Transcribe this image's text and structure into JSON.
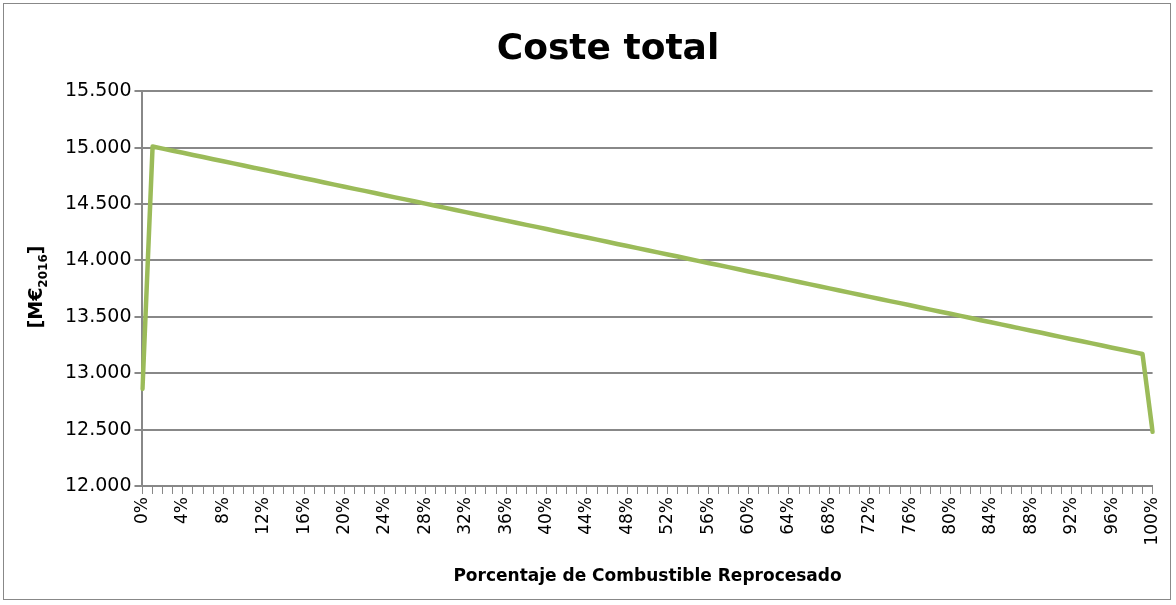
{
  "chart_data": {
    "type": "line",
    "title": "Coste total",
    "xlabel": "Porcentaje de Combustible Reprocesado",
    "ylabel": "[M€$_{2016}$]",
    "categories": [
      "0%",
      null,
      null,
      null,
      "4%",
      null,
      null,
      null,
      "8%",
      null,
      null,
      null,
      "12%",
      null,
      null,
      null,
      "16%",
      null,
      null,
      null,
      "20%",
      null,
      null,
      null,
      "24%",
      null,
      null,
      null,
      "28%",
      null,
      null,
      null,
      "32%",
      null,
      null,
      null,
      "36%",
      null,
      null,
      null,
      "40%",
      null,
      null,
      null,
      "44%",
      null,
      null,
      null,
      "48%",
      null,
      null,
      null,
      "52%",
      null,
      null,
      null,
      "56%",
      null,
      null,
      null,
      "60%",
      null,
      null,
      null,
      "64%",
      null,
      null,
      null,
      "68%",
      null,
      null,
      null,
      "72%",
      null,
      null,
      null,
      "76%",
      null,
      null,
      null,
      "80%",
      null,
      null,
      null,
      "84%",
      null,
      null,
      null,
      "88%",
      null,
      null,
      null,
      "92%",
      null,
      null,
      null,
      "96%",
      null,
      null,
      null,
      "100%"
    ],
    "series": [
      {
        "color": "#9bbb59",
        "values": [
          12860,
          15010,
          14991,
          14972,
          14954,
          14935,
          14916,
          14897,
          14879,
          14860,
          14841,
          14822,
          14803,
          14785,
          14766,
          14747,
          14728,
          14710,
          14691,
          14672,
          14653,
          14634,
          14616,
          14597,
          14578,
          14559,
          14541,
          14522,
          14503,
          14484,
          14466,
          14447,
          14428,
          14409,
          14390,
          14372,
          14353,
          14334,
          14315,
          14297,
          14278,
          14259,
          14240,
          14221,
          14203,
          14184,
          14165,
          14146,
          14128,
          14109,
          14090,
          14071,
          14053,
          14034,
          14015,
          13996,
          13977,
          13959,
          13940,
          13921,
          13902,
          13883,
          13865,
          13846,
          13827,
          13808,
          13790,
          13771,
          13752,
          13733,
          13714,
          13696,
          13677,
          13658,
          13639,
          13621,
          13602,
          13583,
          13564,
          13545,
          13527,
          13508,
          13489,
          13470,
          13452,
          13433,
          13414,
          13395,
          13377,
          13358,
          13339,
          13320,
          13301,
          13283,
          13264,
          13245,
          13226,
          13208,
          13189,
          13170,
          12480
        ]
      }
    ],
    "ylim": [
      12000,
      15500
    ],
    "yticks": [
      {
        "value": 12000,
        "label": "12.000"
      },
      {
        "value": 12500,
        "label": "12.500"
      },
      {
        "value": 13000,
        "label": "13.000"
      },
      {
        "value": 13500,
        "label": "13.500"
      },
      {
        "value": 14000,
        "label": "14.000"
      },
      {
        "value": 14500,
        "label": "14.500"
      },
      {
        "value": 15000,
        "label": "15.000"
      },
      {
        "value": 15500,
        "label": "15.500"
      }
    ],
    "grid": "y",
    "legend": false,
    "marker": "none",
    "line_style": "solid"
  }
}
